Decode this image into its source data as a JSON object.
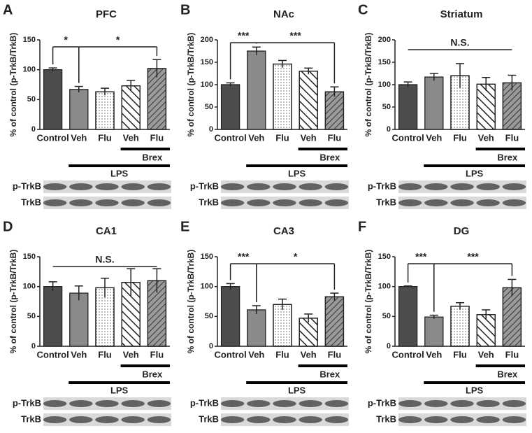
{
  "chart_data": [
    {
      "type": "bar",
      "panel_label": "A",
      "title": "PFC",
      "y_label": "% of control (p-TrkB/TrkB)",
      "categories": [
        "Control",
        "Veh",
        "Flu",
        "Veh",
        "Flu"
      ],
      "values": [
        100,
        67,
        63,
        73,
        102
      ],
      "errors": [
        3,
        5,
        6,
        9,
        15
      ],
      "colors": [
        "#4d4d4d",
        "#8a8a8a",
        "#ffffff",
        "#ffffff",
        "#9a9a9a"
      ],
      "ylim": [
        0,
        150
      ],
      "yticks": [
        0,
        50,
        100,
        150
      ],
      "annotations": [
        "*",
        "*"
      ],
      "group_labels": [
        "Brex",
        "LPS"
      ],
      "blot_labels": [
        "p-TrkB",
        "TrkB"
      ]
    },
    {
      "type": "bar",
      "panel_label": "B",
      "title": "NAc",
      "y_label": "% of control (p-TrkB/TrkB)",
      "categories": [
        "Control",
        "Veh",
        "Flu",
        "Veh",
        "Flu"
      ],
      "values": [
        100,
        175,
        146,
        130,
        84
      ],
      "errors": [
        4,
        9,
        8,
        7,
        11
      ],
      "colors": [
        "#4d4d4d",
        "#8a8a8a",
        "#ffffff",
        "#ffffff",
        "#9a9a9a"
      ],
      "ylim": [
        0,
        200
      ],
      "yticks": [
        0,
        50,
        100,
        150,
        200
      ],
      "annotations": [
        "***",
        "***"
      ],
      "group_labels": [
        "Brex",
        "LPS"
      ],
      "blot_labels": [
        "p-TrkB",
        "TrkB"
      ]
    },
    {
      "type": "bar",
      "panel_label": "C",
      "title": "Striatum",
      "y_label": "% of control (p-TrkB/TrkB)",
      "categories": [
        "Control",
        "Veh",
        "Flu",
        "Veh",
        "Flu"
      ],
      "values": [
        100,
        117,
        120,
        101,
        104
      ],
      "errors": [
        6,
        8,
        27,
        15,
        17
      ],
      "colors": [
        "#4d4d4d",
        "#8a8a8a",
        "#ffffff",
        "#ffffff",
        "#9a9a9a"
      ],
      "ylim": [
        0,
        200
      ],
      "yticks": [
        0,
        50,
        100,
        150,
        200
      ],
      "annotations": [
        "N.S."
      ],
      "group_labels": [
        "Brex",
        "LPS"
      ],
      "blot_labels": [
        "p-TrkB",
        "TrkB"
      ]
    },
    {
      "type": "bar",
      "panel_label": "D",
      "title": "CA1",
      "y_label": "% of control (p-TrkB/TrkB)",
      "categories": [
        "Control",
        "Veh",
        "Flu",
        "Veh",
        "Flu"
      ],
      "values": [
        100,
        89,
        98,
        107,
        110
      ],
      "errors": [
        8,
        12,
        16,
        23,
        20
      ],
      "colors": [
        "#4d4d4d",
        "#8a8a8a",
        "#ffffff",
        "#ffffff",
        "#9a9a9a"
      ],
      "ylim": [
        0,
        150
      ],
      "yticks": [
        0,
        50,
        100,
        150
      ],
      "annotations": [
        "N.S."
      ],
      "group_labels": [
        "Brex",
        "LPS"
      ],
      "blot_labels": [
        "p-TrkB",
        "TrkB"
      ]
    },
    {
      "type": "bar",
      "panel_label": "E",
      "title": "CA3",
      "y_label": "% of control (p-TrkB/TrkB)",
      "categories": [
        "Control",
        "Veh",
        "Flu",
        "Veh",
        "Flu"
      ],
      "values": [
        100,
        61,
        70,
        47,
        83
      ],
      "errors": [
        5,
        7,
        9,
        7,
        6
      ],
      "colors": [
        "#4d4d4d",
        "#8a8a8a",
        "#ffffff",
        "#ffffff",
        "#9a9a9a"
      ],
      "ylim": [
        0,
        150
      ],
      "yticks": [
        0,
        50,
        100,
        150
      ],
      "annotations": [
        "***",
        "*"
      ],
      "group_labels": [
        "Brex",
        "LPS"
      ],
      "blot_labels": [
        "p-TrkB",
        "TrkB"
      ]
    },
    {
      "type": "bar",
      "panel_label": "F",
      "title": "DG",
      "y_label": "% of control (p-TrkB/TrkB)",
      "categories": [
        "Control",
        "Veh",
        "Flu",
        "Veh",
        "Flu"
      ],
      "values": [
        100,
        49,
        67,
        53,
        98
      ],
      "errors": [
        1,
        3,
        6,
        8,
        14
      ],
      "colors": [
        "#4d4d4d",
        "#8a8a8a",
        "#ffffff",
        "#ffffff",
        "#9a9a9a"
      ],
      "ylim": [
        0,
        150
      ],
      "yticks": [
        0,
        50,
        100,
        150
      ],
      "annotations": [
        "***",
        "***"
      ],
      "group_labels": [
        "Brex",
        "LPS"
      ],
      "blot_labels": [
        "p-TrkB",
        "TrkB"
      ]
    }
  ]
}
